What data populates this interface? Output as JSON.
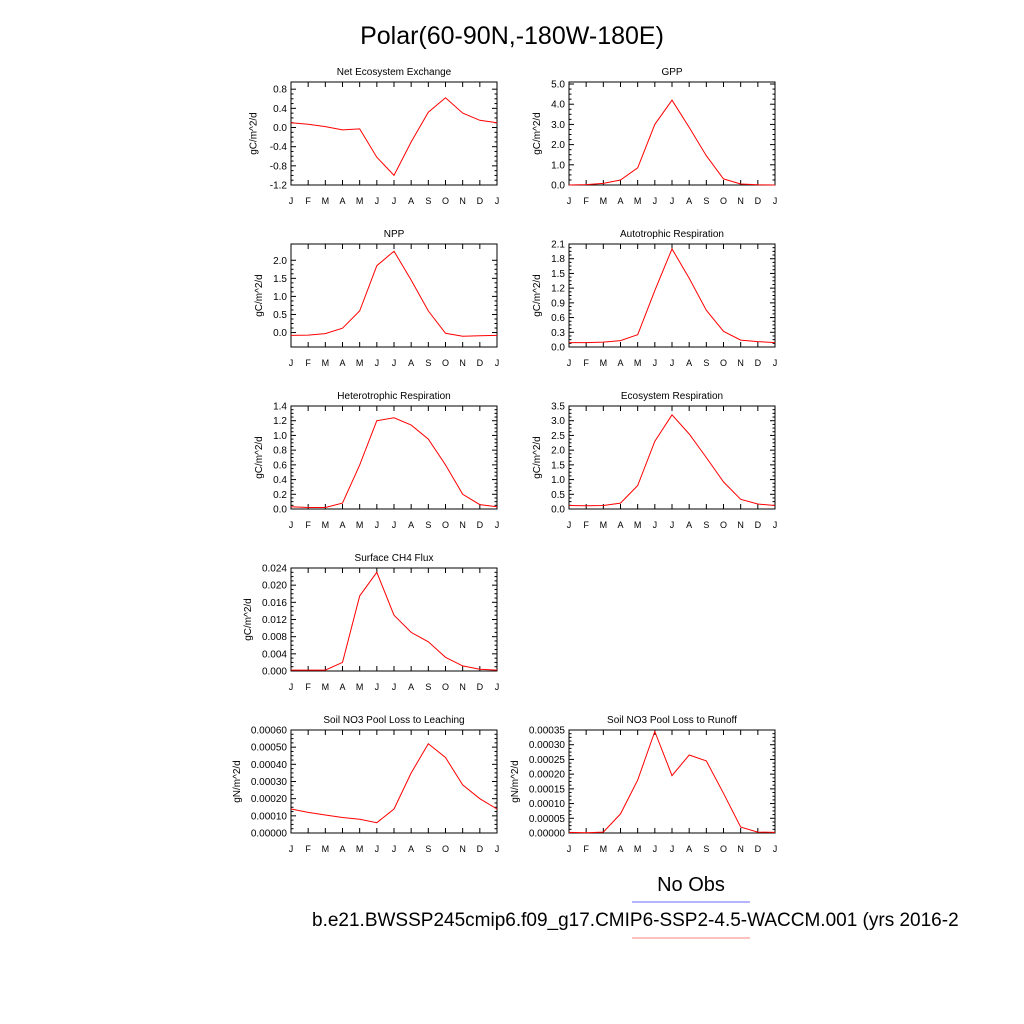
{
  "figure": {
    "title": "Polar(60-90N,-180W-180E)",
    "legend_label": "No Obs",
    "caption": "b.e21.BWSSP245cmip6.f09_g17.CMIP6-SSP2-4.5-WACCM.001 (yrs 2016-2",
    "colors": {
      "model_line": "#ff0000",
      "obs_line": "#6b6bff",
      "model_legend": "#ff8080",
      "axes": "#000000"
    }
  },
  "chart_data": [
    {
      "type": "line",
      "title": "Net Ecosystem Exchange",
      "ylabel": "gC/m^2/d",
      "categories": [
        "J",
        "F",
        "M",
        "A",
        "M",
        "J",
        "J",
        "A",
        "S",
        "O",
        "N",
        "D",
        "J"
      ],
      "yticks": [
        -1.2,
        -0.8,
        -0.4,
        0.0,
        0.4,
        0.8
      ],
      "ytick_labels": [
        "-1.2",
        "-0.8",
        "-0.4",
        "0.0",
        "0.4",
        "0.8"
      ],
      "ylim": [
        -1.2,
        0.95
      ],
      "series": [
        {
          "name": "model",
          "values": [
            0.1,
            0.07,
            0.02,
            -0.05,
            -0.03,
            -0.62,
            -1.0,
            -0.3,
            0.32,
            0.62,
            0.3,
            0.15,
            0.1
          ]
        }
      ]
    },
    {
      "type": "line",
      "title": "GPP",
      "ylabel": "gC/m^2/d",
      "categories": [
        "J",
        "F",
        "M",
        "A",
        "M",
        "J",
        "J",
        "A",
        "S",
        "O",
        "N",
        "D",
        "J"
      ],
      "yticks": [
        0.0,
        1.0,
        2.0,
        3.0,
        4.0,
        5.0
      ],
      "ytick_labels": [
        "0.0",
        "1.0",
        "2.0",
        "3.0",
        "4.0",
        "5.0"
      ],
      "ylim": [
        0,
        5.1
      ],
      "series": [
        {
          "name": "model",
          "values": [
            0.0,
            0.02,
            0.08,
            0.25,
            0.85,
            3.0,
            4.2,
            2.85,
            1.45,
            0.3,
            0.05,
            0.01,
            0.0
          ]
        }
      ]
    },
    {
      "type": "line",
      "title": "NPP",
      "ylabel": "gC/m^2/d",
      "categories": [
        "J",
        "F",
        "M",
        "A",
        "M",
        "J",
        "J",
        "A",
        "S",
        "O",
        "N",
        "D",
        "J"
      ],
      "yticks": [
        0.0,
        0.5,
        1.0,
        1.5,
        2.0
      ],
      "ytick_labels": [
        "0.0",
        "0.5",
        "1.0",
        "1.5",
        "2.0"
      ],
      "ylim": [
        -0.4,
        2.45
      ],
      "series": [
        {
          "name": "model",
          "values": [
            -0.08,
            -0.07,
            -0.03,
            0.12,
            0.6,
            1.85,
            2.25,
            1.45,
            0.6,
            -0.02,
            -0.1,
            -0.09,
            -0.08
          ]
        }
      ]
    },
    {
      "type": "line",
      "title": "Autotrophic Respiration",
      "ylabel": "gC/m^2/d",
      "categories": [
        "J",
        "F",
        "M",
        "A",
        "M",
        "J",
        "J",
        "A",
        "S",
        "O",
        "N",
        "D",
        "J"
      ],
      "yticks": [
        0.0,
        0.3,
        0.6,
        0.9,
        1.2,
        1.5,
        1.8,
        2.1
      ],
      "ytick_labels": [
        "0.0",
        "0.3",
        "0.6",
        "0.9",
        "1.2",
        "1.5",
        "1.8",
        "2.1"
      ],
      "ylim": [
        0,
        2.1
      ],
      "series": [
        {
          "name": "model",
          "values": [
            0.09,
            0.09,
            0.1,
            0.13,
            0.25,
            1.15,
            2.0,
            1.4,
            0.75,
            0.32,
            0.14,
            0.11,
            0.09
          ]
        }
      ]
    },
    {
      "type": "line",
      "title": "Heterotrophic Respiration",
      "ylabel": "gC/m^2/d",
      "categories": [
        "J",
        "F",
        "M",
        "A",
        "M",
        "J",
        "J",
        "A",
        "S",
        "O",
        "N",
        "D",
        "J"
      ],
      "yticks": [
        0.0,
        0.2,
        0.4,
        0.6,
        0.8,
        1.0,
        1.2,
        1.4
      ],
      "ytick_labels": [
        "0.0",
        "0.2",
        "0.4",
        "0.6",
        "0.8",
        "1.0",
        "1.2",
        "1.4"
      ],
      "ylim": [
        0,
        1.4
      ],
      "series": [
        {
          "name": "model",
          "values": [
            0.03,
            0.02,
            0.02,
            0.08,
            0.6,
            1.2,
            1.24,
            1.14,
            0.95,
            0.6,
            0.2,
            0.06,
            0.03
          ]
        }
      ]
    },
    {
      "type": "line",
      "title": "Ecosystem Respiration",
      "ylabel": "gC/m^2/d",
      "categories": [
        "J",
        "F",
        "M",
        "A",
        "M",
        "J",
        "J",
        "A",
        "S",
        "O",
        "N",
        "D",
        "J"
      ],
      "yticks": [
        0.0,
        0.5,
        1.0,
        1.5,
        2.0,
        2.5,
        3.0,
        3.5
      ],
      "ytick_labels": [
        "0.0",
        "0.5",
        "1.0",
        "1.5",
        "2.0",
        "2.5",
        "3.0",
        "3.5"
      ],
      "ylim": [
        0,
        3.5
      ],
      "series": [
        {
          "name": "model",
          "values": [
            0.12,
            0.11,
            0.12,
            0.2,
            0.8,
            2.3,
            3.2,
            2.55,
            1.75,
            0.92,
            0.33,
            0.17,
            0.12
          ]
        }
      ]
    },
    {
      "type": "line",
      "title": "Surface CH4 Flux",
      "ylabel": "gC/m^2/d",
      "categories": [
        "J",
        "F",
        "M",
        "A",
        "M",
        "J",
        "J",
        "A",
        "S",
        "O",
        "N",
        "D",
        "J"
      ],
      "yticks": [
        0.0,
        0.004,
        0.008,
        0.012,
        0.016,
        0.02,
        0.024
      ],
      "ytick_labels": [
        "0.000",
        "0.004",
        "0.008",
        "0.012",
        "0.016",
        "0.020",
        "0.024"
      ],
      "ylim": [
        0,
        0.024
      ],
      "series": [
        {
          "name": "model",
          "values": [
            0.0002,
            0.0002,
            0.0002,
            0.002,
            0.0175,
            0.023,
            0.013,
            0.009,
            0.0068,
            0.0032,
            0.0012,
            0.0004,
            0.0002
          ]
        }
      ]
    },
    {
      "type": "line",
      "title": "Soil NO3 Pool Loss to Leaching",
      "ylabel": "gN/m^2/d",
      "categories": [
        "J",
        "F",
        "M",
        "A",
        "M",
        "J",
        "J",
        "A",
        "S",
        "O",
        "N",
        "D",
        "J"
      ],
      "yticks": [
        0.0,
        0.0001,
        0.0002,
        0.0003,
        0.0004,
        0.0005,
        0.0006
      ],
      "ytick_labels": [
        "0.00000",
        "0.00010",
        "0.00020",
        "0.00030",
        "0.00040",
        "0.00050",
        "0.00060"
      ],
      "ylim": [
        0,
        0.0006
      ],
      "series": [
        {
          "name": "model",
          "values": [
            0.00014,
            0.00012,
            0.000105,
            9e-05,
            8e-05,
            6e-05,
            0.00014,
            0.00035,
            0.00052,
            0.00044,
            0.00028,
            0.0002,
            0.00014
          ]
        }
      ]
    },
    {
      "type": "line",
      "title": "Soil NO3 Pool Loss to Runoff",
      "ylabel": "gN/m^2/d",
      "categories": [
        "J",
        "F",
        "M",
        "A",
        "M",
        "J",
        "J",
        "A",
        "S",
        "O",
        "N",
        "D",
        "J"
      ],
      "yticks": [
        0.0,
        5e-05,
        0.0001,
        0.00015,
        0.0002,
        0.00025,
        0.0003,
        0.00035
      ],
      "ytick_labels": [
        "0.00000",
        "0.00005",
        "0.00010",
        "0.00015",
        "0.00020",
        "0.00025",
        "0.00030",
        "0.00035"
      ],
      "ylim": [
        0,
        0.00035
      ],
      "series": [
        {
          "name": "model",
          "values": [
            2e-06,
            1e-06,
            3e-06,
            6.5e-05,
            0.00018,
            0.000345,
            0.000195,
            0.000265,
            0.000245,
            0.000135,
            2e-05,
            3e-06,
            2e-06
          ]
        }
      ]
    }
  ]
}
